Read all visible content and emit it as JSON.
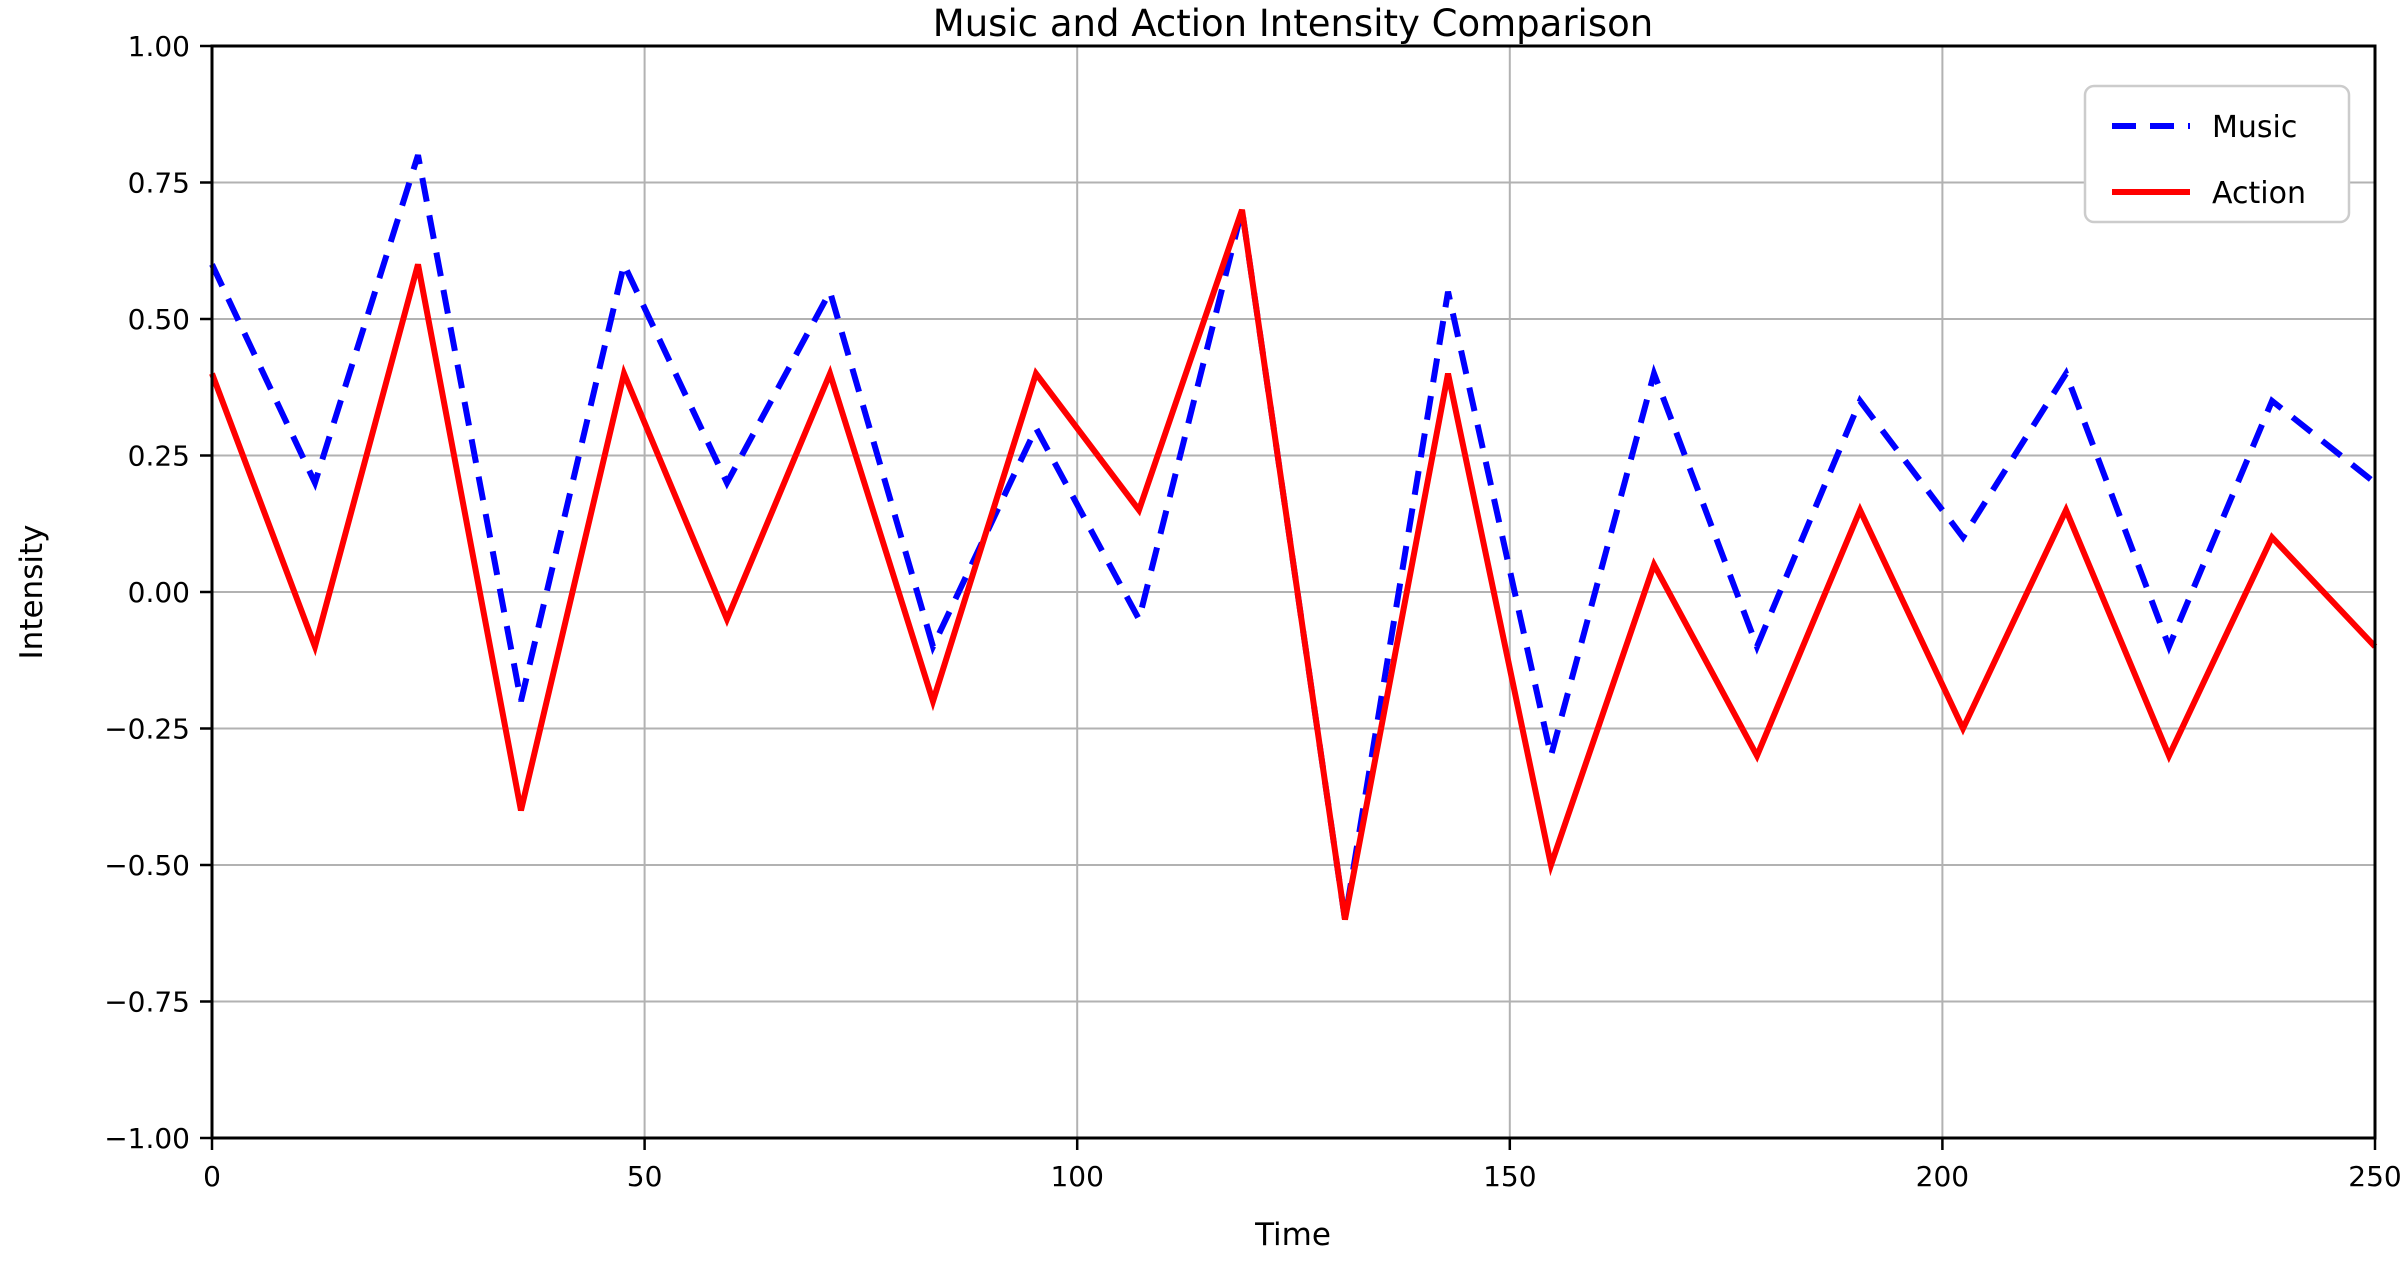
{
  "chart_data": {
    "type": "line",
    "title": "Music and Action Intensity Comparison",
    "xlabel": "Time",
    "ylabel": "Intensity",
    "xlim": [
      0,
      250
    ],
    "ylim": [
      -1.0,
      1.0
    ],
    "grid": true,
    "legend_position": "upper right",
    "x": [
      0,
      11.9,
      23.81,
      35.71,
      47.62,
      59.52,
      71.43,
      83.33,
      95.24,
      107.14,
      119.05,
      130.95,
      142.86,
      154.76,
      166.67,
      178.57,
      190.48,
      202.38,
      214.29,
      226.19,
      238.1,
      250
    ],
    "series": [
      {
        "name": "Music",
        "color": "#0000ff",
        "style": "dashed",
        "values": [
          0.6,
          0.2,
          0.8,
          -0.2,
          0.6,
          0.2,
          0.55,
          -0.1,
          0.3,
          -0.05,
          0.7,
          -0.6,
          0.55,
          -0.3,
          0.4,
          -0.1,
          0.35,
          0.1,
          0.4,
          -0.1,
          0.35,
          0.2
        ]
      },
      {
        "name": "Action",
        "color": "#ff0000",
        "style": "solid",
        "values": [
          0.4,
          -0.1,
          0.6,
          -0.4,
          0.4,
          -0.05,
          0.4,
          -0.2,
          0.4,
          0.15,
          0.7,
          -0.6,
          0.4,
          -0.5,
          0.05,
          -0.3,
          0.15,
          -0.25,
          0.15,
          -0.3,
          0.1,
          -0.1
        ]
      }
    ],
    "x_tick_values": [
      0,
      50,
      100,
      150,
      200,
      250
    ],
    "x_tick_labels": [
      "0",
      "50",
      "100",
      "150",
      "200",
      "250"
    ],
    "y_tick_values": [
      1.0,
      0.75,
      0.5,
      0.25,
      0.0,
      -0.25,
      -0.5,
      -0.75,
      -1.0
    ],
    "y_tick_labels": [
      "1.00",
      "0.75",
      "0.50",
      "0.25",
      "0.00",
      "−0.25",
      "−0.50",
      "−0.75",
      "−1.00"
    ],
    "grid_color": "#b2b2b2",
    "spine_color": "#000000"
  }
}
